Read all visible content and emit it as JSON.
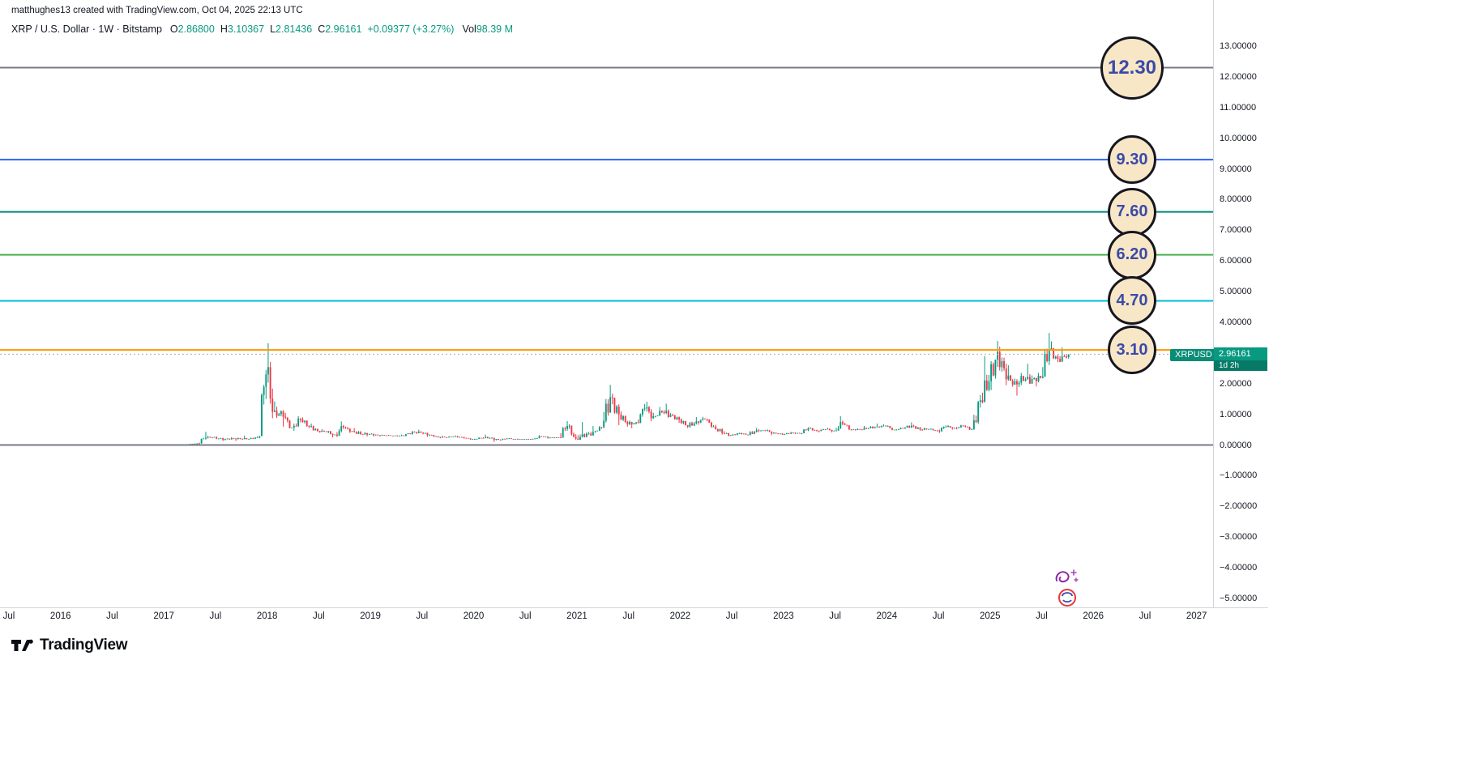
{
  "attribution": "matthughes13 created with TradingView.com, Oct 04, 2025 22:13 UTC",
  "legend": {
    "symbol": "XRP / U.S. Dollar · 1W · Bitstamp",
    "open": {
      "label": "O",
      "value": "2.86800"
    },
    "high": {
      "label": "H",
      "value": "3.10367"
    },
    "low": {
      "label": "L",
      "value": "2.81436"
    },
    "close": {
      "label": "C",
      "value": "2.96161"
    },
    "change": "+0.09377 (+3.27%)",
    "volume": {
      "label": "Vol",
      "value": "98.39 M"
    }
  },
  "price_scale": {
    "ticks": [
      "13.00000",
      "12.00000",
      "11.00000",
      "10.00000",
      "9.00000",
      "8.00000",
      "7.00000",
      "6.00000",
      "5.00000",
      "4.00000",
      "3.00000",
      "2.00000",
      "1.00000",
      "0.00000",
      "−1.00000",
      "−2.00000",
      "−3.00000",
      "−4.00000",
      "−5.00000"
    ],
    "symbol_chip": "XRPUSD",
    "current_price": "2.96161",
    "countdown": "1d 2h"
  },
  "time_scale": {
    "ticks": [
      "Jul",
      "2016",
      "Jul",
      "2017",
      "Jul",
      "2018",
      "Jul",
      "2019",
      "Jul",
      "2020",
      "Jul",
      "2021",
      "Jul",
      "2022",
      "Jul",
      "2023",
      "Jul",
      "2024",
      "Jul",
      "2025",
      "Jul",
      "2026",
      "Jul",
      "2027"
    ]
  },
  "footer": {
    "brand": "TradingView"
  },
  "chart_data": {
    "type": "candlestick",
    "title": "XRP / U.S. Dollar, 1W, Bitstamp",
    "symbol": "XRPUSD",
    "timeframe": "1W",
    "exchange": "Bitstamp",
    "last_bar": {
      "open": 2.868,
      "high": 3.10367,
      "low": 2.81436,
      "close": 2.96161,
      "change": "+0.09377",
      "change_pct": "+3.27%",
      "volume": "98.39 M"
    },
    "current_price": 2.96161,
    "up_color": "#089981",
    "down_color": "#f23645",
    "price_line_color": "#a8adb8",
    "y_axis": {
      "min": -5,
      "max": 13,
      "tick_step": 1
    },
    "x_axis": {
      "start": "2015-07",
      "end": "2027-01",
      "data_end": "2025-10"
    },
    "end_time": 2025.77,
    "levels": [
      {
        "label": "12.30",
        "value": 12.3,
        "color": "#787b86",
        "badge": true,
        "big": true
      },
      {
        "label": "9.30",
        "value": 9.3,
        "color": "#2962ff",
        "badge": true
      },
      {
        "label": "7.60",
        "value": 7.6,
        "color": "#00897b",
        "badge": true
      },
      {
        "label": "6.20",
        "value": 6.2,
        "color": "#4caf50",
        "badge": true
      },
      {
        "label": "4.70",
        "value": 4.7,
        "color": "#00bcd4",
        "badge": true
      },
      {
        "label": "3.10",
        "value": 3.1,
        "color": "#ff9800",
        "badge": true
      },
      {
        "label": "0.00",
        "value": 0.0,
        "color": "#787b86",
        "badge": false
      }
    ],
    "badge_style": {
      "fill": "#f8e7c6",
      "border": "#16161f",
      "text": "#3a4aa8"
    },
    "months_start": "2015-07",
    "months_ohlc": [
      [
        0.01,
        0.012,
        0.007,
        0.008
      ],
      [
        0.008,
        0.009,
        0.006,
        0.007
      ],
      [
        0.007,
        0.008,
        0.005,
        0.006
      ],
      [
        0.006,
        0.008,
        0.004,
        0.005
      ],
      [
        0.005,
        0.006,
        0.004,
        0.004
      ],
      [
        0.004,
        0.007,
        0.004,
        0.006
      ],
      [
        0.006,
        0.007,
        0.005,
        0.006
      ],
      [
        0.006,
        0.008,
        0.005,
        0.007
      ],
      [
        0.007,
        0.009,
        0.006,
        0.008
      ],
      [
        0.008,
        0.009,
        0.006,
        0.007
      ],
      [
        0.007,
        0.008,
        0.005,
        0.006
      ],
      [
        0.006,
        0.007,
        0.005,
        0.006
      ],
      [
        0.006,
        0.007,
        0.005,
        0.006
      ],
      [
        0.006,
        0.007,
        0.005,
        0.006
      ],
      [
        0.006,
        0.007,
        0.005,
        0.006
      ],
      [
        0.006,
        0.009,
        0.006,
        0.008
      ],
      [
        0.008,
        0.009,
        0.006,
        0.007
      ],
      [
        0.007,
        0.008,
        0.006,
        0.006
      ],
      [
        0.006,
        0.007,
        0.005,
        0.006
      ],
      [
        0.006,
        0.007,
        0.005,
        0.006
      ],
      [
        0.006,
        0.03,
        0.006,
        0.025
      ],
      [
        0.025,
        0.06,
        0.02,
        0.05
      ],
      [
        0.05,
        0.43,
        0.048,
        0.24
      ],
      [
        0.24,
        0.3,
        0.21,
        0.26
      ],
      [
        0.26,
        0.28,
        0.13,
        0.17
      ],
      [
        0.17,
        0.26,
        0.15,
        0.22
      ],
      [
        0.22,
        0.24,
        0.13,
        0.2
      ],
      [
        0.2,
        0.31,
        0.19,
        0.2
      ],
      [
        0.2,
        0.28,
        0.19,
        0.25
      ],
      [
        0.25,
        2.45,
        0.22,
        2.3
      ],
      [
        2.3,
        3.32,
        0.87,
        1.12
      ],
      [
        1.12,
        1.25,
        0.6,
        0.92
      ],
      [
        0.92,
        1.05,
        0.55,
        0.57
      ],
      [
        0.57,
        0.94,
        0.46,
        0.83
      ],
      [
        0.83,
        0.9,
        0.55,
        0.61
      ],
      [
        0.61,
        0.7,
        0.43,
        0.46
      ],
      [
        0.46,
        0.52,
        0.4,
        0.43
      ],
      [
        0.43,
        0.46,
        0.25,
        0.34
      ],
      [
        0.34,
        0.77,
        0.26,
        0.58
      ],
      [
        0.58,
        0.6,
        0.39,
        0.45
      ],
      [
        0.45,
        0.55,
        0.33,
        0.36
      ],
      [
        0.36,
        0.42,
        0.28,
        0.36
      ],
      [
        0.36,
        0.38,
        0.28,
        0.32
      ],
      [
        0.32,
        0.34,
        0.28,
        0.31
      ],
      [
        0.31,
        0.33,
        0.29,
        0.31
      ],
      [
        0.31,
        0.34,
        0.28,
        0.3
      ],
      [
        0.3,
        0.46,
        0.28,
        0.43
      ],
      [
        0.43,
        0.5,
        0.36,
        0.4
      ],
      [
        0.4,
        0.42,
        0.27,
        0.33
      ],
      [
        0.33,
        0.34,
        0.24,
        0.26
      ],
      [
        0.26,
        0.3,
        0.22,
        0.25
      ],
      [
        0.25,
        0.31,
        0.24,
        0.29
      ],
      [
        0.29,
        0.3,
        0.21,
        0.23
      ],
      [
        0.23,
        0.24,
        0.17,
        0.19
      ],
      [
        0.19,
        0.25,
        0.18,
        0.23
      ],
      [
        0.23,
        0.34,
        0.22,
        0.23
      ],
      [
        0.23,
        0.25,
        0.1,
        0.17
      ],
      [
        0.17,
        0.23,
        0.16,
        0.21
      ],
      [
        0.21,
        0.23,
        0.18,
        0.2
      ],
      [
        0.2,
        0.21,
        0.17,
        0.18
      ],
      [
        0.18,
        0.21,
        0.17,
        0.2
      ],
      [
        0.2,
        0.32,
        0.19,
        0.28
      ],
      [
        0.28,
        0.29,
        0.21,
        0.24
      ],
      [
        0.24,
        0.26,
        0.22,
        0.25
      ],
      [
        0.25,
        0.78,
        0.23,
        0.62
      ],
      [
        0.62,
        0.68,
        0.17,
        0.21
      ],
      [
        0.21,
        0.75,
        0.17,
        0.27
      ],
      [
        0.27,
        0.62,
        0.25,
        0.43
      ],
      [
        0.43,
        0.62,
        0.4,
        0.57
      ],
      [
        0.57,
        1.96,
        0.56,
        1.56
      ],
      [
        1.56,
        1.67,
        0.65,
        1.0
      ],
      [
        1.0,
        1.1,
        0.6,
        0.68
      ],
      [
        0.68,
        0.8,
        0.55,
        0.74
      ],
      [
        0.74,
        1.34,
        0.7,
        1.19
      ],
      [
        1.19,
        1.41,
        0.78,
        0.94
      ],
      [
        0.94,
        1.24,
        0.9,
        1.07
      ],
      [
        1.07,
        1.35,
        0.88,
        0.98
      ],
      [
        0.98,
        1.02,
        0.72,
        0.83
      ],
      [
        0.83,
        0.87,
        0.55,
        0.6
      ],
      [
        0.6,
        0.91,
        0.56,
        0.77
      ],
      [
        0.77,
        0.92,
        0.66,
        0.84
      ],
      [
        0.84,
        0.86,
        0.56,
        0.6
      ],
      [
        0.6,
        0.66,
        0.34,
        0.39
      ],
      [
        0.39,
        0.45,
        0.28,
        0.32
      ],
      [
        0.32,
        0.4,
        0.3,
        0.38
      ],
      [
        0.38,
        0.41,
        0.32,
        0.33
      ],
      [
        0.33,
        0.56,
        0.31,
        0.48
      ],
      [
        0.48,
        0.52,
        0.42,
        0.46
      ],
      [
        0.46,
        0.51,
        0.32,
        0.4
      ],
      [
        0.4,
        0.41,
        0.33,
        0.34
      ],
      [
        0.34,
        0.43,
        0.33,
        0.4
      ],
      [
        0.4,
        0.42,
        0.36,
        0.38
      ],
      [
        0.38,
        0.58,
        0.35,
        0.54
      ],
      [
        0.54,
        0.58,
        0.44,
        0.47
      ],
      [
        0.47,
        0.53,
        0.41,
        0.51
      ],
      [
        0.51,
        0.56,
        0.41,
        0.47
      ],
      [
        0.47,
        0.94,
        0.45,
        0.7
      ],
      [
        0.7,
        0.72,
        0.48,
        0.5
      ],
      [
        0.5,
        0.54,
        0.47,
        0.51
      ],
      [
        0.51,
        0.62,
        0.48,
        0.55
      ],
      [
        0.55,
        0.7,
        0.54,
        0.6
      ],
      [
        0.6,
        0.68,
        0.56,
        0.62
      ],
      [
        0.62,
        0.64,
        0.48,
        0.5
      ],
      [
        0.5,
        0.57,
        0.48,
        0.55
      ],
      [
        0.55,
        0.74,
        0.52,
        0.63
      ],
      [
        0.63,
        0.66,
        0.46,
        0.51
      ],
      [
        0.51,
        0.57,
        0.46,
        0.52
      ],
      [
        0.52,
        0.54,
        0.44,
        0.47
      ],
      [
        0.47,
        0.64,
        0.39,
        0.6
      ],
      [
        0.6,
        0.65,
        0.5,
        0.56
      ],
      [
        0.56,
        0.66,
        0.51,
        0.62
      ],
      [
        0.62,
        0.65,
        0.49,
        0.51
      ],
      [
        0.51,
        1.63,
        0.5,
        1.46
      ],
      [
        1.46,
        2.9,
        1.36,
        2.08
      ],
      [
        2.08,
        3.39,
        1.79,
        3.04
      ],
      [
        3.04,
        3.21,
        1.95,
        2.14
      ],
      [
        2.14,
        2.6,
        1.9,
        2.08
      ],
      [
        2.08,
        2.35,
        1.61,
        2.09
      ],
      [
        2.09,
        2.65,
        2.0,
        2.15
      ],
      [
        2.15,
        2.35,
        1.91,
        2.19
      ],
      [
        2.19,
        3.65,
        2.17,
        3.1
      ],
      [
        3.1,
        3.38,
        2.7,
        2.81
      ],
      [
        2.81,
        3.18,
        2.7,
        2.85
      ],
      [
        2.868,
        3.104,
        2.814,
        2.962
      ]
    ]
  }
}
